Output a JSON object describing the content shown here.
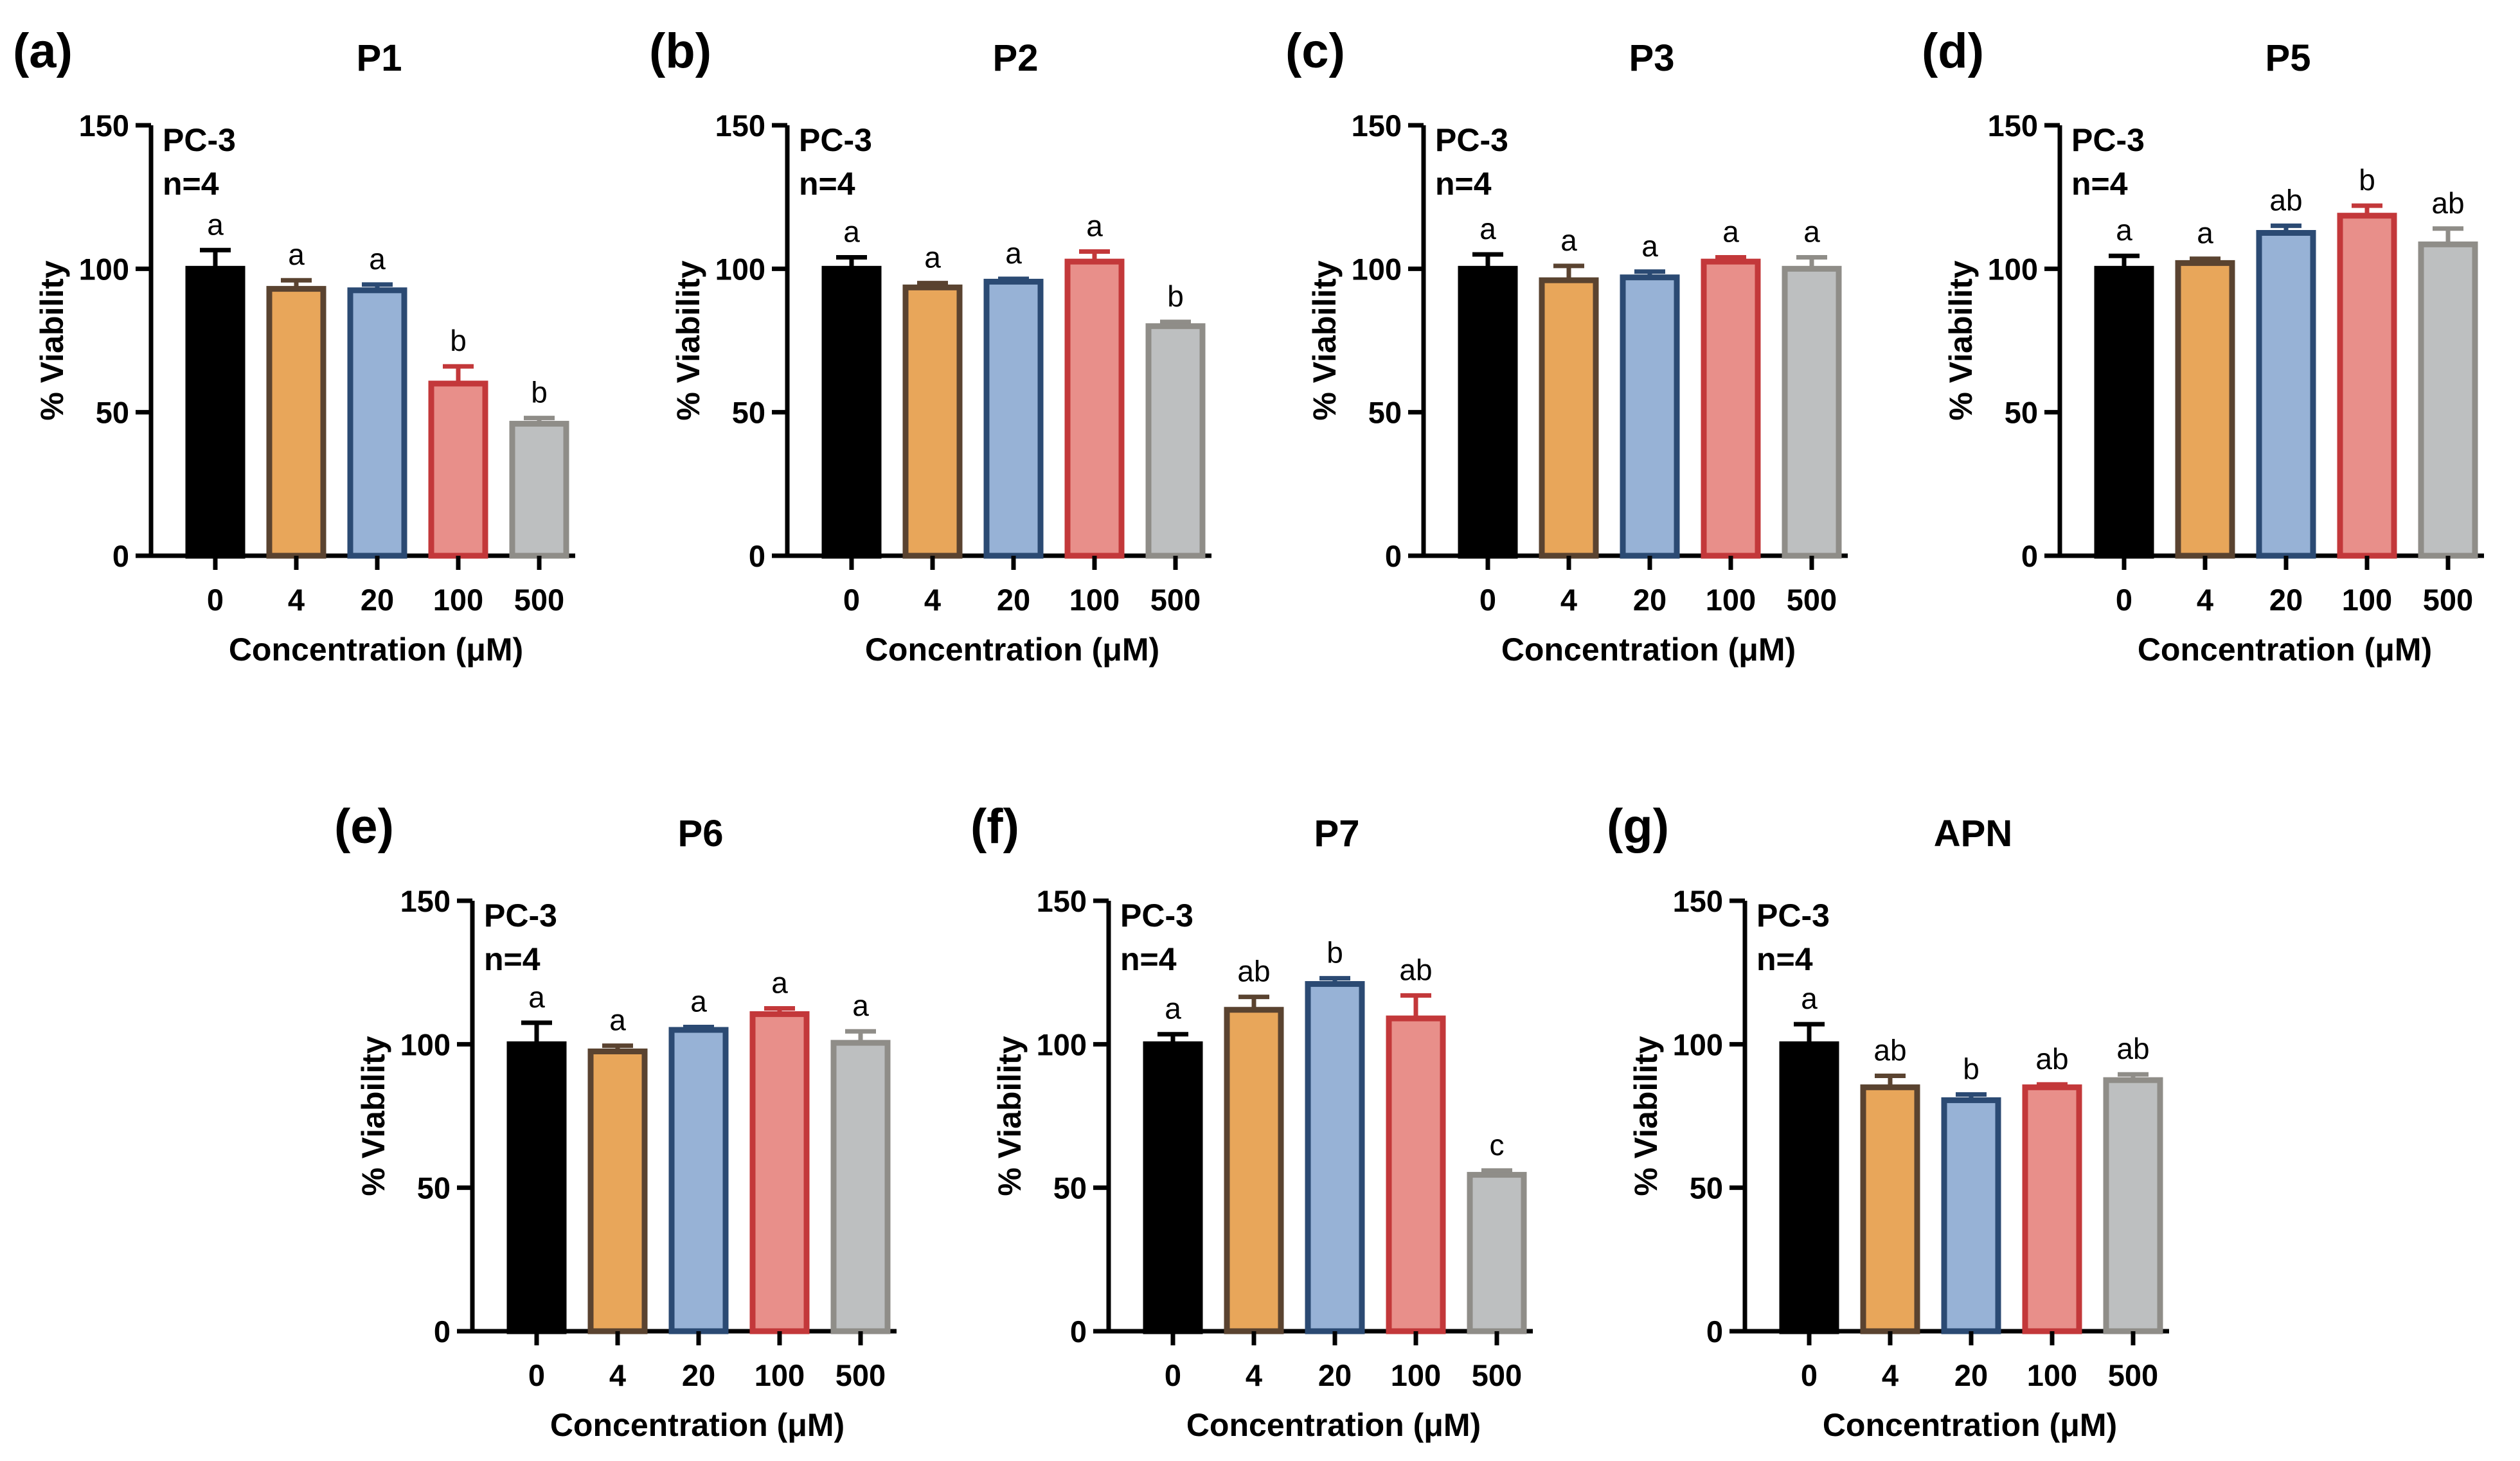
{
  "chart_data": [
    {
      "type": "bar",
      "panel": "(a)",
      "title": "P1",
      "categories": [
        "0",
        "4",
        "20",
        "100",
        "500"
      ],
      "values": [
        100,
        93,
        92.5,
        60,
        46
      ],
      "errors": [
        6.5,
        3,
        2,
        6,
        2
      ],
      "significance": [
        "a",
        "a",
        "a",
        "b",
        "b"
      ],
      "annotation": [
        "PC-3",
        "n=4"
      ],
      "xlabel": "Concentration (μM)",
      "ylabel": "% Viability",
      "ylim": [
        0,
        150
      ],
      "yticks": [
        0,
        50,
        100,
        150
      ]
    },
    {
      "type": "bar",
      "panel": "(b)",
      "title": "P2",
      "categories": [
        "0",
        "4",
        "20",
        "100",
        "500"
      ],
      "values": [
        100,
        93.5,
        95.5,
        102.5,
        80
      ],
      "errors": [
        4,
        1.5,
        1,
        3.5,
        1.5
      ],
      "significance": [
        "a",
        "a",
        "a",
        "a",
        "b"
      ],
      "annotation": [
        "PC-3",
        "n=4"
      ],
      "xlabel": "Concentration (μM)",
      "ylabel": "% Viability",
      "ylim": [
        0,
        150
      ],
      "yticks": [
        0,
        50,
        100,
        150
      ]
    },
    {
      "type": "bar",
      "panel": "(c)",
      "title": "P3",
      "categories": [
        "0",
        "4",
        "20",
        "100",
        "500"
      ],
      "values": [
        100,
        96,
        97,
        102.5,
        100
      ],
      "errors": [
        5,
        5,
        2,
        1.5,
        4
      ],
      "significance": [
        "a",
        "a",
        "a",
        "a",
        "a"
      ],
      "annotation": [
        "PC-3",
        "n=4"
      ],
      "xlabel": "Concentration (μM)",
      "ylabel": "% Viability",
      "ylim": [
        0,
        150
      ],
      "yticks": [
        0,
        50,
        100,
        150
      ]
    },
    {
      "type": "bar",
      "panel": "(d)",
      "title": "P5",
      "categories": [
        "0",
        "4",
        "20",
        "100",
        "500"
      ],
      "values": [
        100,
        102,
        112.5,
        118.5,
        108.5
      ],
      "errors": [
        4.5,
        1.5,
        2.5,
        3.5,
        5.5
      ],
      "significance": [
        "a",
        "a",
        "ab",
        "b",
        "ab"
      ],
      "annotation": [
        "PC-3",
        "n=4"
      ],
      "xlabel": "Concentration (μM)",
      "ylabel": "% Viability",
      "ylim": [
        0,
        150
      ],
      "yticks": [
        0,
        50,
        100,
        150
      ]
    },
    {
      "type": "bar",
      "panel": "(e)",
      "title": "P6",
      "categories": [
        "0",
        "4",
        "20",
        "100",
        "500"
      ],
      "values": [
        100,
        97.5,
        105,
        110.5,
        100.5
      ],
      "errors": [
        7.5,
        2,
        1,
        2,
        4
      ],
      "significance": [
        "a",
        "a",
        "a",
        "a",
        "a"
      ],
      "annotation": [
        "PC-3",
        "n=4"
      ],
      "xlabel": "Concentration (μM)",
      "ylabel": "% Viability",
      "ylim": [
        0,
        150
      ],
      "yticks": [
        0,
        50,
        100,
        150
      ]
    },
    {
      "type": "bar",
      "panel": "(f)",
      "title": "P7",
      "categories": [
        "0",
        "4",
        "20",
        "100",
        "500"
      ],
      "values": [
        100,
        112,
        121,
        109,
        54.5
      ],
      "errors": [
        3.5,
        4.5,
        2,
        8,
        1.5
      ],
      "significance": [
        "a",
        "ab",
        "b",
        "ab",
        "c"
      ],
      "annotation": [
        "PC-3",
        "n=4"
      ],
      "xlabel": "Concentration (μM)",
      "ylabel": "% Viability",
      "ylim": [
        0,
        150
      ],
      "yticks": [
        0,
        50,
        100,
        150
      ]
    },
    {
      "type": "bar",
      "panel": "(g)",
      "title": "APN",
      "categories": [
        "0",
        "4",
        "20",
        "100",
        "500"
      ],
      "values": [
        100,
        85,
        80.5,
        85,
        87.5
      ],
      "errors": [
        7,
        4,
        2,
        1,
        2
      ],
      "significance": [
        "a",
        "ab",
        "b",
        "ab",
        "ab"
      ],
      "annotation": [
        "PC-3",
        "n=4"
      ],
      "xlabel": "Concentration (μM)",
      "ylabel": "% Viability",
      "ylim": [
        0,
        150
      ],
      "yticks": [
        0,
        50,
        100,
        150
      ]
    }
  ],
  "bar_colors": {
    "fills": [
      "#000000",
      "#e8a65a",
      "#97b2d6",
      "#e88f8a",
      "#bdbfc0"
    ],
    "strokes": [
      "#000000",
      "#5a4330",
      "#2b4a73",
      "#c3383a",
      "#8f8d88"
    ]
  }
}
